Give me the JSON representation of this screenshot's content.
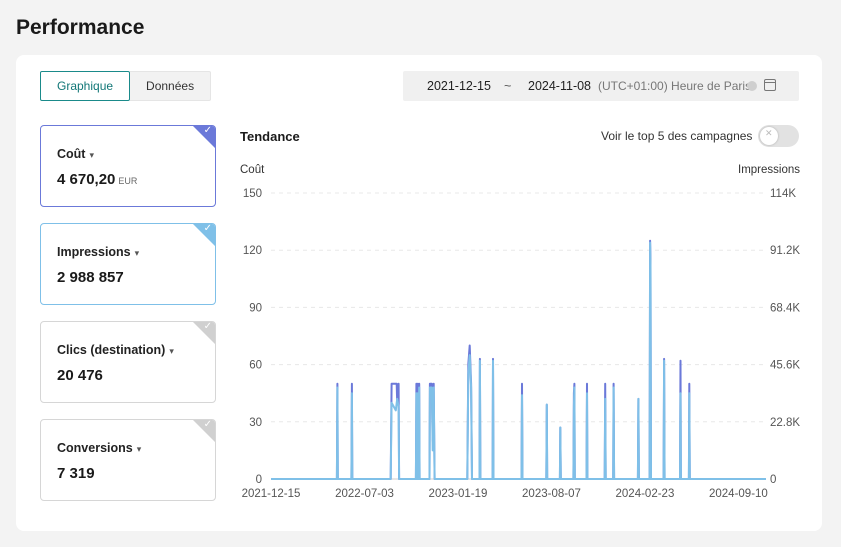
{
  "page": {
    "title": "Performance"
  },
  "view_toggle": {
    "chart_label": "Graphique",
    "data_label": "Données"
  },
  "date_range": {
    "start": "2021-12-15",
    "separator": "~",
    "end": "2024-11-08",
    "timezone": "(UTC+01:00) Heure de Paris"
  },
  "metrics": [
    {
      "name": "Coût",
      "value": "4 670,20",
      "unit": "EUR",
      "selected": true,
      "color": "#6b79d9"
    },
    {
      "name": "Impressions",
      "value": "2 988 857",
      "unit": "",
      "selected": true,
      "color": "#7fc0e8"
    },
    {
      "name": "Clics (destination)",
      "value": "20 476",
      "unit": "",
      "selected": false,
      "color": "#d0d0d0"
    },
    {
      "name": "Conversions",
      "value": "7 319",
      "unit": "",
      "selected": false,
      "color": "#d0d0d0"
    }
  ],
  "chart": {
    "title": "Tendance",
    "top5_label": "Voir le top 5 des campagnes",
    "top5_enabled": false
  },
  "chart_data": {
    "type": "line",
    "ylabel": "Coût",
    "y2label": "Impressions",
    "ylim": [
      0,
      150
    ],
    "y2lim": [
      0,
      114000
    ],
    "yticks": [
      "0",
      "30",
      "60",
      "90",
      "120",
      "150"
    ],
    "y2ticks": [
      "0",
      "22.8K",
      "45.6K",
      "68.4K",
      "91.2K",
      "114K"
    ],
    "xticks": [
      "2021-12-15",
      "2022-07-03",
      "2023-01-19",
      "2023-08-07",
      "2024-02-23",
      "2024-09-10"
    ],
    "xlim": [
      "2021-12-15",
      "2024-11-08"
    ],
    "grid": true,
    "series": [
      {
        "name": "Coût",
        "axis": "left",
        "color": "#6b79d9",
        "points": [
          [
            "2021-12-15",
            0
          ],
          [
            "2022-05-05",
            0
          ],
          [
            "2022-05-06",
            50
          ],
          [
            "2022-05-07",
            0
          ],
          [
            "2022-06-05",
            0
          ],
          [
            "2022-06-06",
            50
          ],
          [
            "2022-06-07",
            0
          ],
          [
            "2022-08-28",
            0
          ],
          [
            "2022-08-30",
            50
          ],
          [
            "2022-09-10",
            50
          ],
          [
            "2022-09-11",
            40
          ],
          [
            "2022-09-14",
            50
          ],
          [
            "2022-09-15",
            0
          ],
          [
            "2022-10-21",
            0
          ],
          [
            "2022-10-22",
            50
          ],
          [
            "2022-10-23",
            0
          ],
          [
            "2022-10-25",
            50
          ],
          [
            "2022-10-26",
            0
          ],
          [
            "2022-10-28",
            50
          ],
          [
            "2022-10-29",
            0
          ],
          [
            "2022-11-19",
            0
          ],
          [
            "2022-11-20",
            50
          ],
          [
            "2022-11-24",
            50
          ],
          [
            "2022-11-26",
            20
          ],
          [
            "2022-11-28",
            50
          ],
          [
            "2022-11-30",
            0
          ],
          [
            "2023-02-08",
            0
          ],
          [
            "2023-02-10",
            60
          ],
          [
            "2023-02-13",
            70
          ],
          [
            "2023-02-16",
            50
          ],
          [
            "2023-02-18",
            0
          ],
          [
            "2023-03-06",
            0
          ],
          [
            "2023-03-07",
            63
          ],
          [
            "2023-03-08",
            0
          ],
          [
            "2023-04-03",
            0
          ],
          [
            "2023-04-04",
            63
          ],
          [
            "2023-04-05",
            0
          ],
          [
            "2023-06-04",
            0
          ],
          [
            "2023-06-05",
            50
          ],
          [
            "2023-06-06",
            0
          ],
          [
            "2023-07-27",
            0
          ],
          [
            "2023-07-28",
            39
          ],
          [
            "2023-07-29",
            0
          ],
          [
            "2023-08-25",
            0
          ],
          [
            "2023-08-26",
            27
          ],
          [
            "2023-08-27",
            0
          ],
          [
            "2023-09-23",
            0
          ],
          [
            "2023-09-24",
            45
          ],
          [
            "2023-09-25",
            50
          ],
          [
            "2023-09-26",
            0
          ],
          [
            "2023-10-21",
            0
          ],
          [
            "2023-10-22",
            50
          ],
          [
            "2023-10-23",
            0
          ],
          [
            "2023-11-29",
            0
          ],
          [
            "2023-11-30",
            50
          ],
          [
            "2023-12-01",
            0
          ],
          [
            "2023-12-17",
            0
          ],
          [
            "2023-12-18",
            50
          ],
          [
            "2023-12-19",
            0
          ],
          [
            "2024-02-08",
            0
          ],
          [
            "2024-02-09",
            42
          ],
          [
            "2024-02-10",
            0
          ],
          [
            "2024-03-04",
            0
          ],
          [
            "2024-03-05",
            125
          ],
          [
            "2024-03-06",
            115
          ],
          [
            "2024-03-07",
            0
          ],
          [
            "2024-04-03",
            0
          ],
          [
            "2024-04-04",
            63
          ],
          [
            "2024-04-05",
            0
          ],
          [
            "2024-05-08",
            0
          ],
          [
            "2024-05-09",
            62
          ],
          [
            "2024-05-10",
            0
          ],
          [
            "2024-05-27",
            0
          ],
          [
            "2024-05-28",
            50
          ],
          [
            "2024-05-29",
            0
          ],
          [
            "2024-11-08",
            0
          ]
        ]
      },
      {
        "name": "Impressions",
        "axis": "left",
        "color": "#7fc0e8",
        "points": [
          [
            "2021-12-15",
            0
          ],
          [
            "2022-05-05",
            0
          ],
          [
            "2022-05-06",
            48
          ],
          [
            "2022-05-07",
            0
          ],
          [
            "2022-06-05",
            0
          ],
          [
            "2022-06-06",
            45
          ],
          [
            "2022-06-07",
            0
          ],
          [
            "2022-08-28",
            0
          ],
          [
            "2022-08-30",
            40
          ],
          [
            "2022-09-08",
            36
          ],
          [
            "2022-09-11",
            42
          ],
          [
            "2022-09-14",
            38
          ],
          [
            "2022-09-15",
            0
          ],
          [
            "2022-10-21",
            0
          ],
          [
            "2022-10-22",
            45
          ],
          [
            "2022-10-23",
            0
          ],
          [
            "2022-10-25",
            45
          ],
          [
            "2022-10-26",
            0
          ],
          [
            "2022-10-28",
            48
          ],
          [
            "2022-10-29",
            0
          ],
          [
            "2022-11-19",
            0
          ],
          [
            "2022-11-20",
            48
          ],
          [
            "2022-11-24",
            48
          ],
          [
            "2022-11-26",
            15
          ],
          [
            "2022-11-28",
            48
          ],
          [
            "2022-11-30",
            0
          ],
          [
            "2023-02-08",
            0
          ],
          [
            "2023-02-10",
            55
          ],
          [
            "2023-02-13",
            65
          ],
          [
            "2023-02-16",
            48
          ],
          [
            "2023-02-18",
            0
          ],
          [
            "2023-03-06",
            0
          ],
          [
            "2023-03-07",
            62
          ],
          [
            "2023-03-08",
            0
          ],
          [
            "2023-04-03",
            0
          ],
          [
            "2023-04-04",
            62
          ],
          [
            "2023-04-05",
            0
          ],
          [
            "2023-06-04",
            0
          ],
          [
            "2023-06-05",
            44
          ],
          [
            "2023-06-06",
            0
          ],
          [
            "2023-07-27",
            0
          ],
          [
            "2023-07-28",
            39
          ],
          [
            "2023-07-29",
            0
          ],
          [
            "2023-08-25",
            0
          ],
          [
            "2023-08-26",
            27
          ],
          [
            "2023-08-27",
            0
          ],
          [
            "2023-09-23",
            0
          ],
          [
            "2023-09-24",
            38
          ],
          [
            "2023-09-25",
            48
          ],
          [
            "2023-09-26",
            0
          ],
          [
            "2023-10-21",
            0
          ],
          [
            "2023-10-22",
            45
          ],
          [
            "2023-10-23",
            0
          ],
          [
            "2023-11-29",
            0
          ],
          [
            "2023-11-30",
            42
          ],
          [
            "2023-12-01",
            0
          ],
          [
            "2023-12-17",
            0
          ],
          [
            "2023-12-18",
            48
          ],
          [
            "2023-12-19",
            0
          ],
          [
            "2024-02-08",
            0
          ],
          [
            "2024-02-09",
            42
          ],
          [
            "2024-02-10",
            0
          ],
          [
            "2024-03-04",
            0
          ],
          [
            "2024-03-05",
            124
          ],
          [
            "2024-03-06",
            112
          ],
          [
            "2024-03-07",
            0
          ],
          [
            "2024-04-03",
            0
          ],
          [
            "2024-04-04",
            62
          ],
          [
            "2024-04-05",
            0
          ],
          [
            "2024-05-08",
            0
          ],
          [
            "2024-05-09",
            45
          ],
          [
            "2024-05-10",
            0
          ],
          [
            "2024-05-27",
            0
          ],
          [
            "2024-05-28",
            45
          ],
          [
            "2024-05-29",
            0
          ],
          [
            "2024-11-08",
            0
          ]
        ]
      }
    ]
  }
}
